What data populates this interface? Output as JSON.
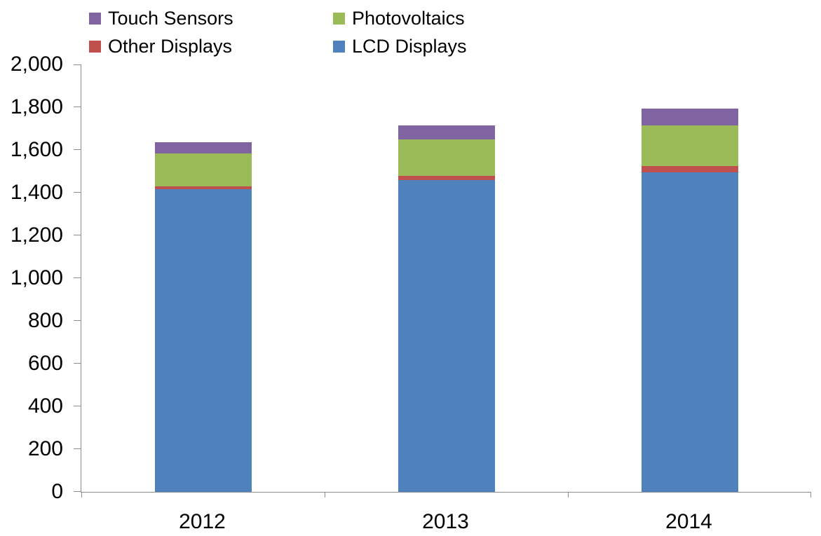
{
  "chart_data": {
    "type": "bar",
    "stacked": true,
    "categories": [
      "2012",
      "2013",
      "2014"
    ],
    "series": [
      {
        "name": "LCD Displays",
        "color": "#4F81BD",
        "values": [
          1415,
          1460,
          1495
        ]
      },
      {
        "name": "Other Displays",
        "color": "#C0504D",
        "values": [
          15,
          20,
          30
        ]
      },
      {
        "name": "Photovoltaics",
        "color": "#9BBB59",
        "values": [
          155,
          170,
          190
        ]
      },
      {
        "name": "Touch Sensors",
        "color": "#8064A2",
        "values": [
          50,
          65,
          80
        ]
      }
    ],
    "stack_order_bottom_to_top": [
      "LCD Displays",
      "Other Displays",
      "Photovoltaics",
      "Touch Sensors"
    ],
    "totals": [
      1635,
      1715,
      1795
    ],
    "ylim": [
      0,
      2000
    ],
    "ytick_step": 200,
    "ytick_labels": [
      "0",
      "200",
      "400",
      "600",
      "800",
      "1,000",
      "1,200",
      "1,400",
      "1,600",
      "1,800",
      "2,000"
    ],
    "grid": false,
    "legend_position": "top",
    "legend_order": [
      "Touch Sensors",
      "Photovoltaics",
      "Other Displays",
      "LCD Displays"
    ],
    "axis_color": "#8C8C8C",
    "text_color": "#000000"
  }
}
